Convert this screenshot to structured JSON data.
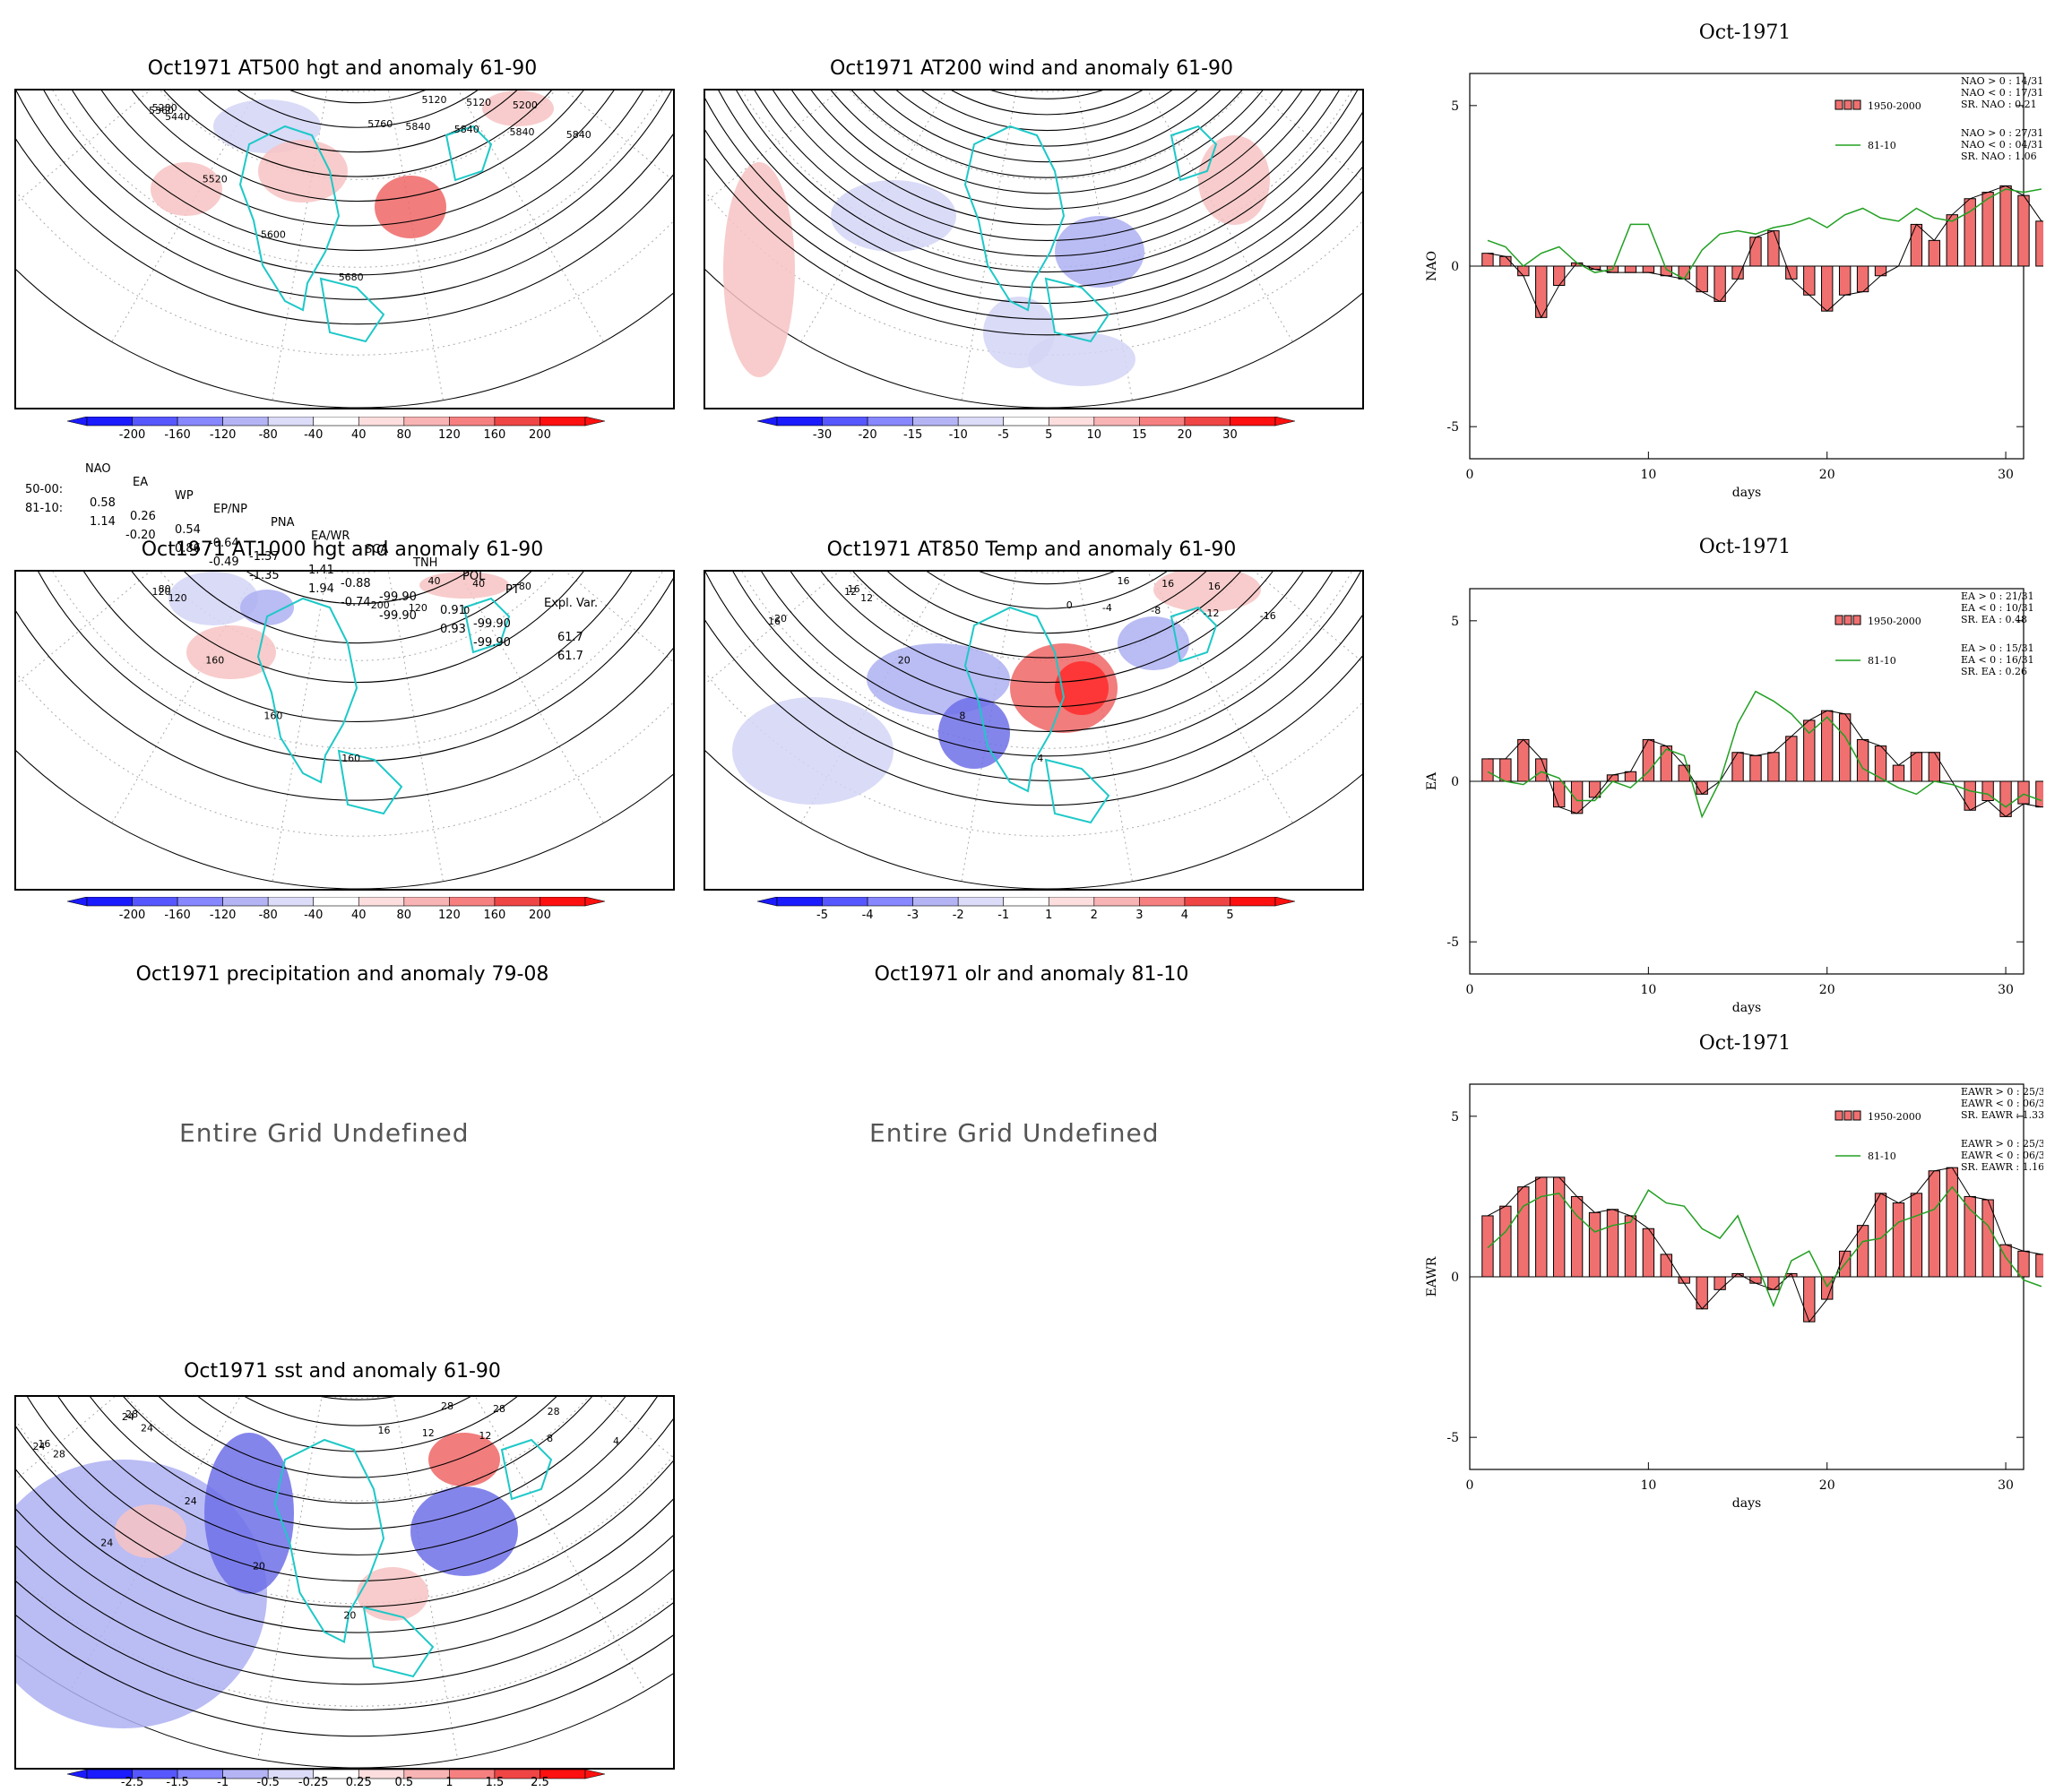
{
  "maps": [
    {
      "id": "m1",
      "title": "Oct1971 AT500 hgt and anomaly 61-90",
      "labels": [
        "5120",
        "5120",
        "5200",
        "5280",
        "5360",
        "5440",
        "5520",
        "5600",
        "5680",
        "5760",
        "5840",
        "5840",
        "5840",
        "5840"
      ]
    },
    {
      "id": "m2",
      "title": "Oct1971 AT200 wind and anomaly 61-90",
      "labels": []
    },
    {
      "id": "m3",
      "title": "Oct1971 AT1000 hgt and anomaly 61-90",
      "labels": [
        "40",
        "40",
        "80",
        "80",
        "120",
        "120",
        "160",
        "160",
        "160",
        "200",
        "120",
        "0"
      ]
    },
    {
      "id": "m4",
      "title": "Oct1971 AT850 Temp and anomaly 61-90",
      "labels": [
        "16",
        "16",
        "16",
        "16",
        "12",
        "12",
        "20",
        "8",
        "4",
        "0",
        "-4",
        "-8",
        "-12",
        "-16",
        "-20",
        "16"
      ]
    },
    {
      "id": "m5",
      "title": "Oct1971 sst and anomaly 61-90",
      "labels": [
        "28",
        "28",
        "28",
        "28",
        "24",
        "24",
        "24",
        "20",
        "20",
        "16",
        "12",
        "12",
        "8",
        "4",
        "16",
        "24",
        "28",
        "24"
      ]
    }
  ],
  "undefined_panels": [
    {
      "title": "Oct1971 precipitation and anomaly 79-08",
      "message": "Entire Grid Undefined"
    },
    {
      "title": "Oct1971 olr and anomaly 81-10",
      "message": "Entire Grid Undefined"
    }
  ],
  "colorbars": {
    "hgt": [
      "-200",
      "-160",
      "-120",
      "-80",
      "-40",
      "40",
      "80",
      "120",
      "160",
      "200"
    ],
    "wind": [
      "-30",
      "-20",
      "-15",
      "-10",
      "-5",
      "5",
      "10",
      "15",
      "20",
      "30"
    ],
    "temp": [
      "-5",
      "-4",
      "-3",
      "-2",
      "-1",
      "1",
      "2",
      "3",
      "4",
      "5"
    ],
    "sst": [
      "-2.5",
      "-1.5",
      "-1",
      "-0.5",
      "-0.25",
      "0.25",
      "0.5",
      "1",
      "1.5",
      "2.5"
    ],
    "colors": [
      "#1b1bff",
      "#5757ff",
      "#8787ff",
      "#b4b4f5",
      "#dcdcf8",
      "#ffffff",
      "#fcdede",
      "#f8b4b4",
      "#f68080",
      "#f04545",
      "#ff1010"
    ]
  },
  "index_table": {
    "header": [
      "NAO",
      "EA",
      "WP",
      "EP/NP",
      "PNA",
      "EA/WR",
      "SCA",
      "TNH",
      "POL",
      "PT",
      "Expl. Var."
    ],
    "rows": [
      {
        "label": "50-00:",
        "values": [
          "0.58",
          "0.26",
          "0.54",
          "-0.64",
          "-1.37",
          "1.41",
          "-0.88",
          "-99.90",
          "0.91",
          "-99.90",
          "61.7"
        ]
      },
      {
        "label": "81-10:",
        "values": [
          "1.14",
          "-0.20",
          "0.86",
          "-0.49",
          "-1.35",
          "1.94",
          "-0.74",
          "-99.90",
          "0.93",
          "-99.90",
          "61.7"
        ]
      }
    ]
  },
  "chart_data": [
    {
      "type": "bar",
      "title": "Oct-1971",
      "xlabel": "days",
      "ylabel": "NAO",
      "xlim": [
        0,
        31
      ],
      "ylim": [
        -6,
        6
      ],
      "xticks": [
        "0",
        "10",
        "20",
        "30"
      ],
      "yticks": [
        "5",
        "0",
        "-5"
      ],
      "legend": {
        "bar": "1950-2000",
        "line": "81-10",
        "stats_bar": [
          "NAO > 0 : 14/31",
          "NAO < 0 : 17/31",
          "SR. NAO :  0.21"
        ],
        "stats_line": [
          "NAO > 0 : 27/31",
          "NAO < 0 : 04/31",
          "SR. NAO :  1.06"
        ]
      },
      "series": [
        {
          "name": "1950-2000",
          "values": [
            0.4,
            0.3,
            -0.3,
            -1.6,
            -0.6,
            0.1,
            -0.1,
            -0.2,
            -0.2,
            -0.2,
            -0.3,
            -0.4,
            -0.8,
            -1.1,
            -0.4,
            0.9,
            1.1,
            -0.4,
            -0.9,
            -1.4,
            -0.9,
            -0.8,
            -0.3,
            0.0,
            1.3,
            0.8,
            1.6,
            2.1,
            2.3,
            2.5,
            2.2,
            1.4
          ]
        },
        {
          "name": "81-10",
          "values": [
            0.8,
            0.6,
            0.0,
            0.4,
            0.6,
            0.1,
            -0.2,
            -0.1,
            1.3,
            1.3,
            -0.1,
            -0.4,
            0.5,
            1.0,
            1.1,
            1.0,
            1.2,
            1.3,
            1.5,
            1.2,
            1.6,
            1.8,
            1.5,
            1.4,
            1.8,
            1.5,
            1.4,
            1.7,
            2.1,
            2.4,
            2.3,
            2.4
          ]
        }
      ]
    },
    {
      "type": "bar",
      "title": "Oct-1971",
      "xlabel": "days",
      "ylabel": "EA",
      "xlim": [
        0,
        31
      ],
      "ylim": [
        -6,
        6
      ],
      "xticks": [
        "0",
        "10",
        "20",
        "30"
      ],
      "yticks": [
        "5",
        "0",
        "-5"
      ],
      "legend": {
        "bar": "1950-2000",
        "line": "81-10",
        "stats_bar": [
          "EA > 0 : 21/31",
          "EA < 0 : 10/31",
          "SR. EA :  0.48"
        ],
        "stats_line": [
          "EA > 0 : 15/31",
          "EA < 0 : 16/31",
          "SR. EA :  0.26"
        ]
      },
      "series": [
        {
          "name": "1950-2000",
          "values": [
            0.7,
            0.7,
            1.3,
            0.7,
            -0.8,
            -1.0,
            -0.5,
            0.2,
            0.3,
            1.3,
            1.1,
            0.5,
            -0.4,
            0.0,
            0.9,
            0.8,
            0.9,
            1.4,
            1.9,
            2.2,
            2.1,
            1.3,
            1.1,
            0.5,
            0.9,
            0.9,
            0.0,
            -0.9,
            -0.6,
            -1.1,
            -0.7,
            -0.8
          ]
        },
        {
          "name": "81-10",
          "values": [
            0.3,
            0.0,
            -0.1,
            0.3,
            0.1,
            -0.6,
            -0.6,
            0.0,
            -0.2,
            0.3,
            1.0,
            0.8,
            -1.1,
            0.0,
            1.8,
            2.8,
            2.5,
            2.1,
            1.5,
            2.0,
            1.4,
            0.4,
            0.1,
            -0.2,
            -0.4,
            0.0,
            -0.1,
            -0.3,
            -0.4,
            -0.8,
            -0.4,
            -0.6
          ]
        }
      ]
    },
    {
      "type": "bar",
      "title": "Oct-1971",
      "xlabel": "days",
      "ylabel": "EAWR",
      "xlim": [
        0,
        31
      ],
      "ylim": [
        -6,
        6
      ],
      "xticks": [
        "0",
        "10",
        "20",
        "30"
      ],
      "yticks": [
        "5",
        "0",
        "-5"
      ],
      "legend": {
        "bar": "1950-2000",
        "line": "81-10",
        "stats_bar": [
          "EAWR > 0 : 25/31",
          "EAWR < 0 : 06/31",
          "SR. EAWR :  1.33"
        ],
        "stats_line": [
          "EAWR > 0 : 25/31",
          "EAWR < 0 : 06/31",
          "SR. EAWR :  1.16"
        ]
      },
      "series": [
        {
          "name": "1950-2000",
          "values": [
            1.9,
            2.2,
            2.8,
            3.1,
            3.1,
            2.5,
            2.0,
            2.1,
            1.9,
            1.5,
            0.7,
            -0.2,
            -1.0,
            -0.4,
            0.1,
            -0.2,
            -0.4,
            0.1,
            -1.4,
            -0.7,
            0.8,
            1.6,
            2.6,
            2.3,
            2.6,
            3.3,
            3.4,
            2.5,
            2.4,
            1.0,
            0.8,
            0.7
          ]
        },
        {
          "name": "81-10",
          "values": [
            0.9,
            1.4,
            2.2,
            2.5,
            2.6,
            1.9,
            1.4,
            1.6,
            1.7,
            2.7,
            2.3,
            2.2,
            1.5,
            1.2,
            1.9,
            0.5,
            -0.9,
            0.5,
            0.8,
            -0.3,
            0.4,
            1.1,
            1.2,
            1.7,
            1.9,
            2.1,
            2.8,
            2.1,
            1.6,
            0.6,
            -0.1,
            -0.3
          ]
        }
      ]
    }
  ]
}
